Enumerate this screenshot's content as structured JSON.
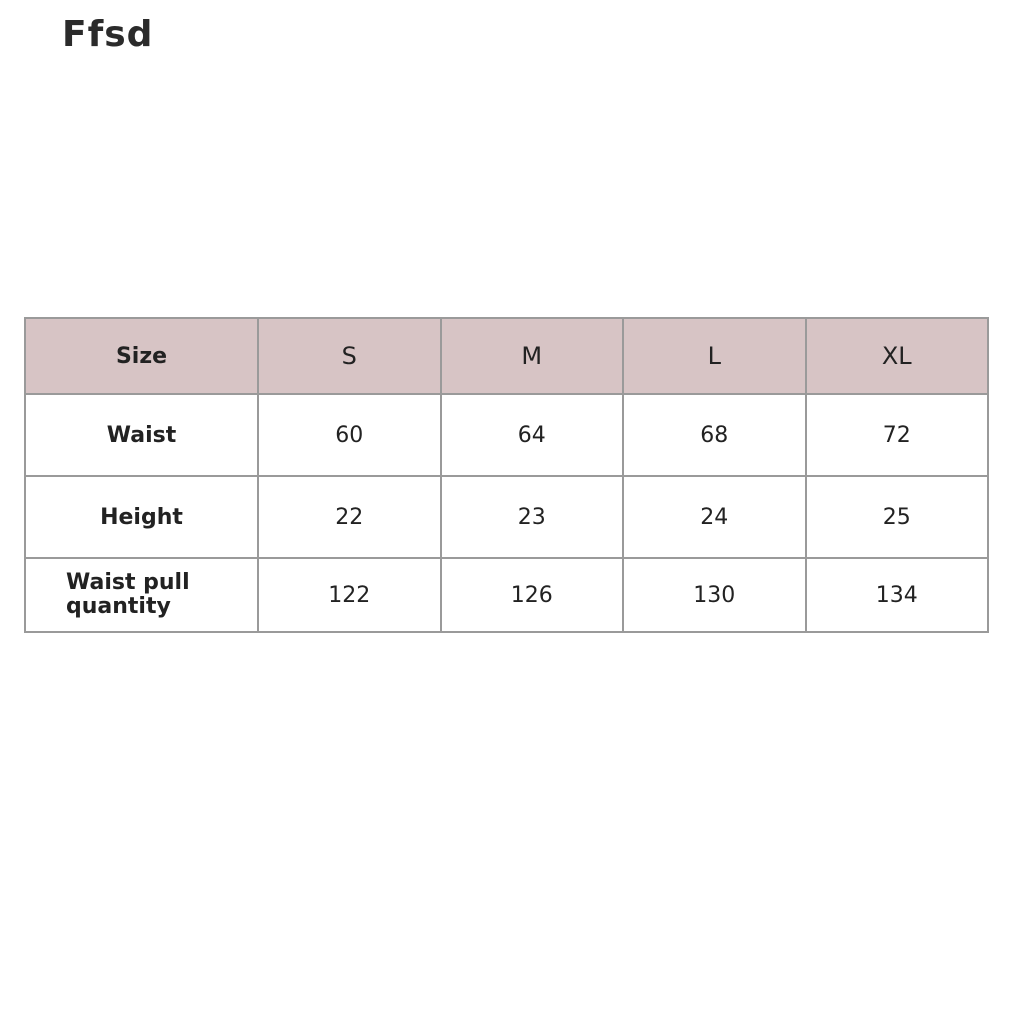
{
  "brand": "Ffsd",
  "table": {
    "header_color": "#d7c4c5",
    "header": [
      "Size",
      "S",
      "M",
      "L",
      "XL"
    ],
    "rows": [
      {
        "label": "Waist",
        "values": [
          "60",
          "64",
          "68",
          "72"
        ]
      },
      {
        "label": "Height",
        "values": [
          "22",
          "23",
          "24",
          "25"
        ]
      },
      {
        "label": "Waist pull quantity",
        "values": [
          "122",
          "126",
          "130",
          "134"
        ]
      }
    ]
  }
}
